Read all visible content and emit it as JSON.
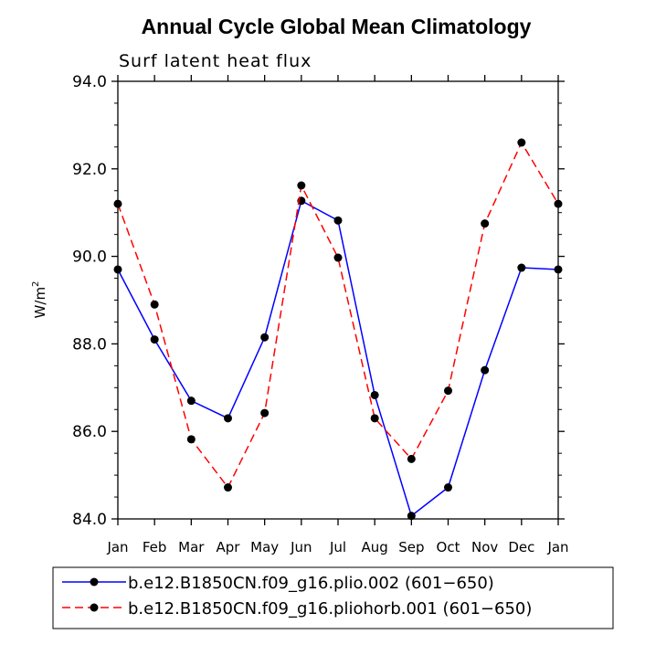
{
  "chart_data": {
    "type": "line",
    "title": "Annual Cycle Global Mean Climatology",
    "subtitle": "Surf latent heat flux",
    "xlabel": "",
    "ylabel": "W/m",
    "ylabel_superscript": "2",
    "ylim": [
      84.0,
      94.0
    ],
    "yticks": [
      "84.0",
      "86.0",
      "88.0",
      "90.0",
      "92.0",
      "94.0"
    ],
    "categories": [
      "Jan",
      "Feb",
      "Mar",
      "Apr",
      "May",
      "Jun",
      "Jul",
      "Aug",
      "Sep",
      "Oct",
      "Nov",
      "Dec",
      "Jan"
    ],
    "series": [
      {
        "name": "b.e12.B1850CN.f09_g16.plio.002 (601−650)",
        "color": "#0000ff",
        "dash": "solid",
        "values": [
          89.7,
          88.1,
          86.7,
          86.3,
          88.15,
          91.27,
          90.82,
          86.83,
          84.07,
          84.72,
          87.4,
          89.74,
          89.7
        ]
      },
      {
        "name": "b.e12.B1850CN.f09_g16.pliohorb.001 (601−650)",
        "color": "#ff0000",
        "dash": "dashed",
        "values": [
          91.2,
          88.9,
          85.82,
          84.72,
          86.42,
          91.62,
          89.97,
          86.3,
          85.37,
          86.93,
          90.75,
          92.6,
          91.2
        ]
      }
    ],
    "legend_position": "bottom"
  }
}
